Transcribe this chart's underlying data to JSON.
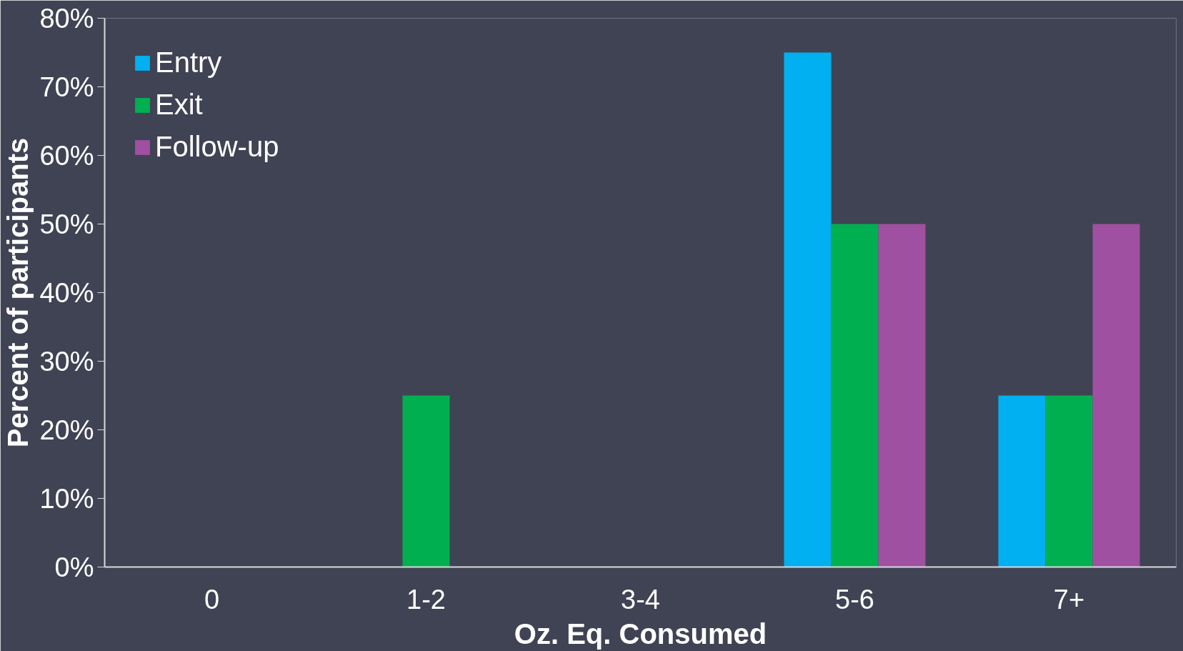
{
  "chart_data": {
    "type": "bar",
    "xlabel": "Oz. Eq. Consumed",
    "ylabel": "Percent of participants",
    "categories": [
      "0",
      "1-2",
      "3-4",
      "5-6",
      "7+"
    ],
    "series": [
      {
        "name": "Entry",
        "color": "#00b0f0",
        "values": [
          0,
          0,
          0,
          75,
          25
        ]
      },
      {
        "name": "Exit",
        "color": "#00b050",
        "values": [
          0,
          25,
          0,
          50,
          25
        ]
      },
      {
        "name": "Follow-up",
        "color": "#a050a0",
        "values": [
          0,
          0,
          0,
          50,
          50
        ]
      }
    ],
    "ylim": [
      0,
      80
    ],
    "yticks": [
      {
        "value": 0,
        "label": "0%"
      },
      {
        "value": 10,
        "label": "10%"
      },
      {
        "value": 20,
        "label": "20%"
      },
      {
        "value": 30,
        "label": "30%"
      },
      {
        "value": 40,
        "label": "40%"
      },
      {
        "value": 50,
        "label": "50%"
      },
      {
        "value": 60,
        "label": "60%"
      },
      {
        "value": 70,
        "label": "70%"
      },
      {
        "value": 80,
        "label": "80%"
      }
    ],
    "grid": false,
    "legend": "top left"
  }
}
